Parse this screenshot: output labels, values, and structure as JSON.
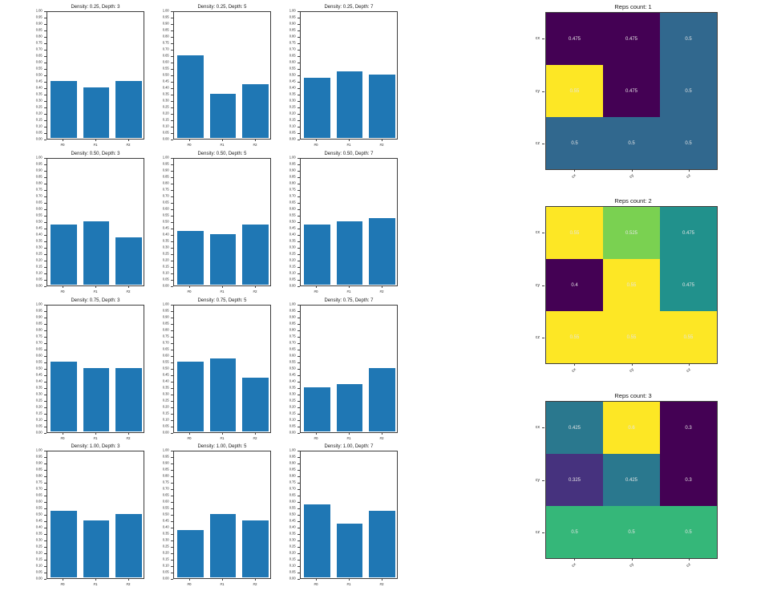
{
  "figure": {
    "background": "#ffffff",
    "bar_color": "#1f77b4",
    "spine_color": "#3c3c3c",
    "tick_label_color": "#262626",
    "heatmap_cell_text_color": "#e6e6e6"
  },
  "chart_data": [
    {
      "type": "bar",
      "title": "Density: 0.25, Depth: 3",
      "categories": [
        "#0",
        "#1",
        "#2"
      ],
      "values": [
        0.45,
        0.4,
        0.45
      ],
      "ylim": [
        0,
        1
      ],
      "ytick_step": 0.05,
      "grid": false
    },
    {
      "type": "bar",
      "title": "Density: 0.25, Depth: 5",
      "categories": [
        "#0",
        "#1",
        "#2"
      ],
      "values": [
        0.65,
        0.35,
        0.425
      ],
      "ylim": [
        0,
        1
      ],
      "ytick_step": 0.05,
      "grid": false
    },
    {
      "type": "bar",
      "title": "Density: 0.25, Depth: 7",
      "categories": [
        "#0",
        "#1",
        "#2"
      ],
      "values": [
        0.475,
        0.525,
        0.5
      ],
      "ylim": [
        0,
        1
      ],
      "ytick_step": 0.05,
      "grid": false
    },
    {
      "type": "bar",
      "title": "Density: 0.50, Depth: 3",
      "categories": [
        "#0",
        "#1",
        "#2"
      ],
      "values": [
        0.475,
        0.5,
        0.375
      ],
      "ylim": [
        0,
        1
      ],
      "ytick_step": 0.05,
      "grid": false
    },
    {
      "type": "bar",
      "title": "Density: 0.50, Depth: 5",
      "categories": [
        "#0",
        "#1",
        "#2"
      ],
      "values": [
        0.425,
        0.4,
        0.475
      ],
      "ylim": [
        0,
        1
      ],
      "ytick_step": 0.05,
      "grid": false
    },
    {
      "type": "bar",
      "title": "Density: 0.50, Depth: 7",
      "categories": [
        "#0",
        "#1",
        "#2"
      ],
      "values": [
        0.475,
        0.5,
        0.525
      ],
      "ylim": [
        0,
        1
      ],
      "ytick_step": 0.05,
      "grid": false
    },
    {
      "type": "bar",
      "title": "Density: 0.75, Depth: 3",
      "categories": [
        "#0",
        "#1",
        "#2"
      ],
      "values": [
        0.55,
        0.5,
        0.5
      ],
      "ylim": [
        0,
        1
      ],
      "ytick_step": 0.05,
      "grid": false
    },
    {
      "type": "bar",
      "title": "Density: 0.75, Depth: 5",
      "categories": [
        "#0",
        "#1",
        "#2"
      ],
      "values": [
        0.55,
        0.575,
        0.425
      ],
      "ylim": [
        0,
        1
      ],
      "ytick_step": 0.05,
      "grid": false
    },
    {
      "type": "bar",
      "title": "Density: 0.75, Depth: 7",
      "categories": [
        "#0",
        "#1",
        "#2"
      ],
      "values": [
        0.35,
        0.375,
        0.5
      ],
      "ylim": [
        0,
        1
      ],
      "ytick_step": 0.05,
      "grid": false
    },
    {
      "type": "bar",
      "title": "Density: 1.00, Depth: 3",
      "categories": [
        "#0",
        "#1",
        "#2"
      ],
      "values": [
        0.525,
        0.45,
        0.5
      ],
      "ylim": [
        0,
        1
      ],
      "ytick_step": 0.05,
      "grid": false
    },
    {
      "type": "bar",
      "title": "Density: 1.00, Depth: 5",
      "categories": [
        "#0",
        "#1",
        "#2"
      ],
      "values": [
        0.375,
        0.5,
        0.45
      ],
      "ylim": [
        0,
        1
      ],
      "ytick_step": 0.05,
      "grid": false
    },
    {
      "type": "bar",
      "title": "Density: 1.00, Depth: 7",
      "categories": [
        "#0",
        "#1",
        "#2"
      ],
      "values": [
        0.575,
        0.425,
        0.525
      ],
      "ylim": [
        0,
        1
      ],
      "ytick_step": 0.05,
      "grid": false
    },
    {
      "type": "heatmap",
      "title": "Reps count: 1",
      "row_labels": [
        "cx",
        "cy",
        "cz"
      ],
      "col_labels": [
        "cx",
        "cy",
        "cz"
      ],
      "values": [
        [
          0.475,
          0.475,
          0.5
        ],
        [
          0.55,
          0.475,
          0.5
        ],
        [
          0.5,
          0.5,
          0.5
        ]
      ],
      "cell_colors": [
        [
          "#440154",
          "#440154",
          "#31688e"
        ],
        [
          "#fde725",
          "#440154",
          "#31688e"
        ],
        [
          "#31688e",
          "#31688e",
          "#31688e"
        ]
      ]
    },
    {
      "type": "heatmap",
      "title": "Reps count: 2",
      "row_labels": [
        "cx",
        "cy",
        "cz"
      ],
      "col_labels": [
        "cx",
        "cy",
        "cz"
      ],
      "values": [
        [
          0.55,
          0.525,
          0.475
        ],
        [
          0.4,
          0.55,
          0.475
        ],
        [
          0.55,
          0.55,
          0.55
        ]
      ],
      "cell_colors": [
        [
          "#fde725",
          "#7ad151",
          "#21918c"
        ],
        [
          "#440154",
          "#fde725",
          "#21918c"
        ],
        [
          "#fde725",
          "#fde725",
          "#fde725"
        ]
      ]
    },
    {
      "type": "heatmap",
      "title": "Reps count: 3",
      "row_labels": [
        "cx",
        "cy",
        "cz"
      ],
      "col_labels": [
        "cx",
        "cy",
        "cz"
      ],
      "values": [
        [
          0.425,
          0.6,
          0.3
        ],
        [
          0.325,
          0.425,
          0.3
        ],
        [
          0.5,
          0.5,
          0.5
        ]
      ],
      "cell_colors": [
        [
          "#2a788e",
          "#fde725",
          "#440154"
        ],
        [
          "#46327e",
          "#2a788e",
          "#440154"
        ],
        [
          "#35b779",
          "#35b779",
          "#35b779"
        ]
      ]
    }
  ]
}
